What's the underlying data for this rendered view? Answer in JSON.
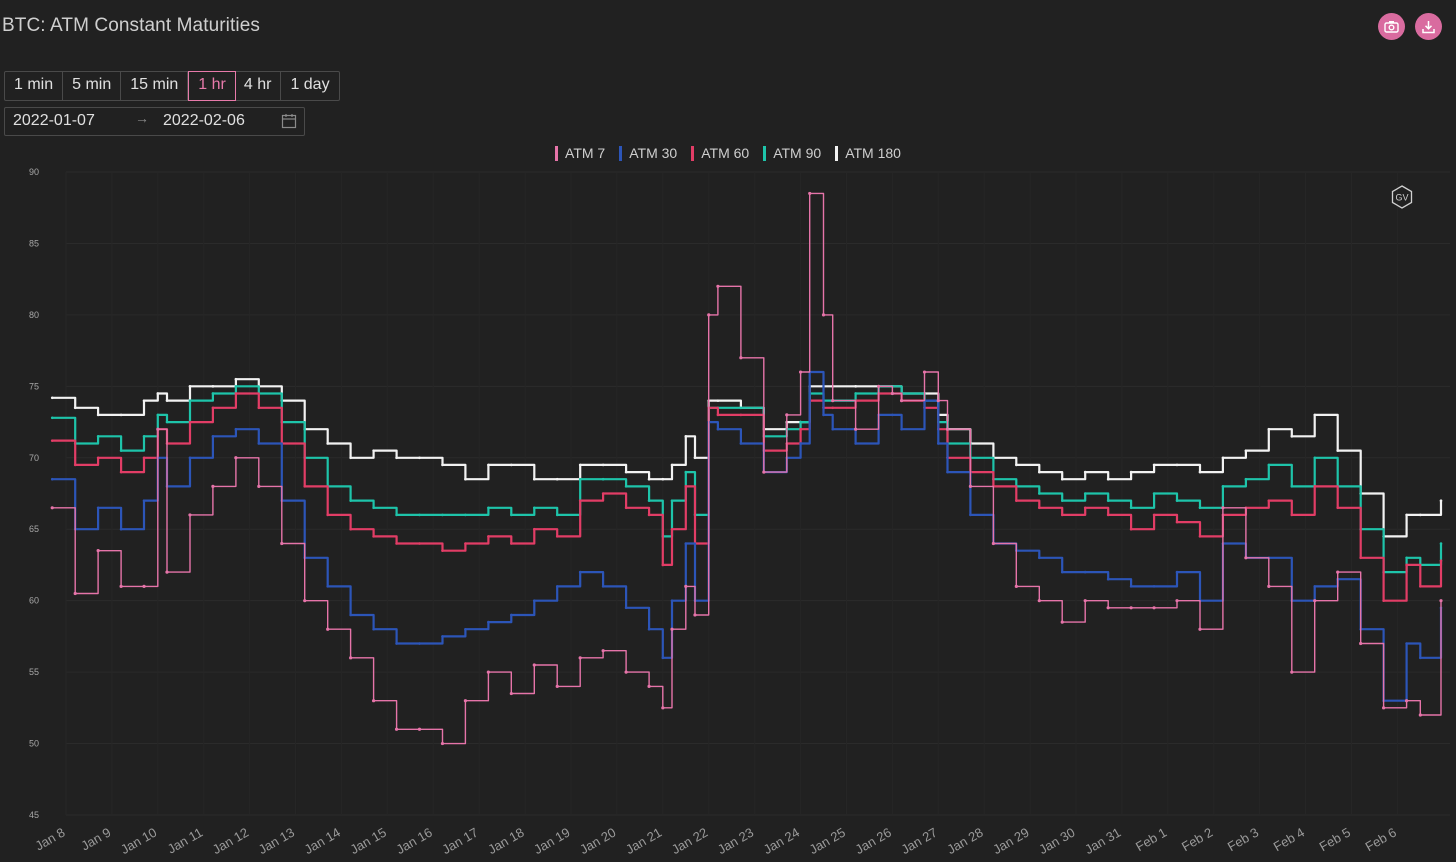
{
  "header": {
    "title": "BTC: ATM Constant Maturities"
  },
  "toolbar": {
    "intervals": [
      "1 min",
      "5 min",
      "15 min",
      "1 hr",
      "4 hr",
      "1 day"
    ],
    "active_interval": "1 hr",
    "start_date": "2022-01-07",
    "range_separator": "→",
    "end_date": "2022-02-06"
  },
  "icons": {
    "screenshot": "camera-icon",
    "download": "download-icon",
    "calendar": "calendar-icon",
    "watermark": "gv-logo-icon"
  },
  "watermark_text": "GV",
  "chart_data": {
    "type": "line",
    "title": "",
    "xlabel": "",
    "ylabel": "",
    "ylim": [
      45,
      90
    ],
    "yticks": [
      45,
      50,
      55,
      60,
      65,
      70,
      75,
      80,
      85,
      90
    ],
    "x_range_days": [
      0,
      29.95
    ],
    "x_tick_labels": [
      "Jan 8",
      "Jan 9",
      "Jan 10",
      "Jan 11",
      "Jan 12",
      "Jan 13",
      "Jan 14",
      "Jan 15",
      "Jan 16",
      "Jan 17",
      "Jan 18",
      "Jan 19",
      "Jan 20",
      "Jan 21",
      "Jan 22",
      "Jan 23",
      "Jan 24",
      "Jan 25",
      "Jan 26",
      "Jan 27",
      "Jan 28",
      "Jan 29",
      "Jan 30",
      "Jan 31",
      "Feb 1",
      "Feb 2",
      "Feb 3",
      "Feb 4",
      "Feb 5",
      "Feb 6"
    ],
    "x_tick_days": [
      0,
      1,
      2,
      3,
      4,
      5,
      6,
      7,
      8,
      9,
      10,
      11,
      12,
      13,
      14,
      15,
      16,
      17,
      18,
      19,
      20,
      21,
      22,
      23,
      24,
      25,
      26,
      27,
      28,
      29
    ],
    "grid": true,
    "legend": "top-center",
    "x_days": [
      -0.3,
      0.2,
      0.7,
      1.2,
      1.7,
      2.0,
      2.2,
      2.7,
      3.2,
      3.7,
      4.2,
      4.7,
      5.2,
      5.7,
      6.2,
      6.7,
      7.2,
      7.7,
      8.2,
      8.7,
      9.2,
      9.7,
      10.2,
      10.7,
      11.2,
      11.7,
      12.2,
      12.7,
      13.0,
      13.2,
      13.5,
      13.7,
      14.0,
      14.2,
      14.7,
      15.2,
      15.7,
      16.0,
      16.2,
      16.5,
      16.7,
      17.2,
      17.7,
      18.0,
      18.2,
      18.7,
      19.0,
      19.2,
      19.7,
      20.2,
      20.7,
      21.2,
      21.7,
      22.2,
      22.7,
      23.2,
      23.7,
      24.2,
      24.7,
      25.2,
      25.7,
      26.2,
      26.7,
      27.2,
      27.7,
      28.2,
      28.7,
      29.2,
      29.5,
      29.95
    ],
    "series": [
      {
        "name": "ATM 7",
        "color": "#e674a9",
        "values": [
          66.5,
          60.5,
          63.5,
          61,
          61,
          72,
          62,
          66,
          68,
          70,
          68,
          64,
          60,
          58,
          56,
          53,
          51,
          51,
          50,
          53,
          55,
          53.5,
          55.5,
          54,
          56,
          56.5,
          55,
          54,
          52.5,
          58,
          61,
          59,
          80,
          82,
          77,
          69,
          73,
          76,
          88.5,
          80,
          74,
          72,
          75,
          74.5,
          74,
          76,
          74,
          72,
          68,
          64,
          61,
          60,
          58.5,
          60,
          59.5,
          59.5,
          59.5,
          60,
          58,
          66.5,
          63,
          61,
          55,
          60,
          62,
          57,
          52.5,
          53,
          52,
          60
        ]
      },
      {
        "name": "ATM 30",
        "color": "#2c55b8",
        "values": [
          68.5,
          65,
          66.5,
          65,
          67,
          70,
          68,
          70,
          71.5,
          72,
          71,
          67,
          63,
          61,
          59,
          58,
          57,
          57,
          57.5,
          58,
          58.5,
          59,
          60,
          61,
          62,
          61,
          59.5,
          58,
          56,
          60,
          64,
          60,
          72.5,
          72,
          71,
          69,
          70,
          71,
          76,
          73,
          72,
          71,
          73,
          73,
          72,
          74,
          71,
          69,
          66,
          64,
          63.5,
          63,
          62,
          62,
          61.5,
          61,
          61,
          62,
          60,
          64,
          63,
          63,
          60,
          61,
          61.5,
          58,
          53,
          57,
          56,
          59.5
        ]
      },
      {
        "name": "ATM 60",
        "color": "#e23d66",
        "values": [
          71.2,
          69.5,
          70,
          69,
          70,
          72,
          71,
          72.5,
          73.5,
          74.5,
          73.5,
          71,
          68,
          66,
          65,
          64.5,
          64,
          64,
          63.5,
          64,
          64.5,
          64,
          65,
          64.5,
          67,
          67.5,
          66.5,
          66,
          62.5,
          65,
          68,
          64,
          73.5,
          73,
          73,
          70.5,
          71,
          72,
          74,
          73.5,
          73.5,
          74,
          74.5,
          74.5,
          74,
          73.5,
          72,
          70,
          69,
          68,
          67,
          66.5,
          66,
          66.5,
          66,
          65,
          66,
          65.5,
          64.5,
          66,
          66.5,
          67,
          66,
          68,
          66.5,
          63,
          60,
          62.5,
          61,
          62.8
        ]
      },
      {
        "name": "ATM 90",
        "color": "#1ec4aa",
        "values": [
          72.8,
          71,
          71.5,
          70.5,
          71.5,
          73,
          72.5,
          74,
          74.5,
          75,
          74.5,
          72.5,
          70,
          68,
          67,
          66.5,
          66,
          66,
          66,
          66,
          66.5,
          66,
          66.5,
          66,
          68.5,
          68.5,
          68,
          67,
          64.5,
          67,
          69,
          66,
          73.5,
          73.5,
          73.5,
          71.5,
          72,
          72.5,
          74.5,
          74,
          74,
          74.5,
          75,
          75,
          74.5,
          74,
          72.5,
          71,
          70,
          68.5,
          68,
          67.5,
          67,
          67.5,
          67,
          66.5,
          67.5,
          67,
          66.5,
          68,
          68.5,
          69.5,
          68,
          70,
          68,
          65,
          62,
          63,
          62.5,
          64
        ]
      },
      {
        "name": "ATM 180",
        "color": "#f2f2f2",
        "values": [
          74.2,
          73.5,
          73,
          73,
          74,
          74.5,
          74,
          75,
          75,
          75.5,
          75,
          74,
          72,
          71,
          70,
          70.5,
          70,
          70,
          69.5,
          68.5,
          69.5,
          69.5,
          68.5,
          68.5,
          69.5,
          69.5,
          69,
          68.5,
          68.5,
          69.5,
          71.5,
          70,
          74,
          74,
          73.5,
          72,
          72.5,
          72.5,
          75,
          75,
          75,
          75,
          75,
          75,
          74.5,
          74.5,
          73,
          72,
          71,
          70,
          69.5,
          69,
          68.5,
          69,
          68.5,
          69,
          69.5,
          69.5,
          69,
          70,
          70.5,
          72,
          71.5,
          73,
          70.5,
          67.5,
          64.5,
          66,
          66,
          67
        ]
      }
    ]
  }
}
